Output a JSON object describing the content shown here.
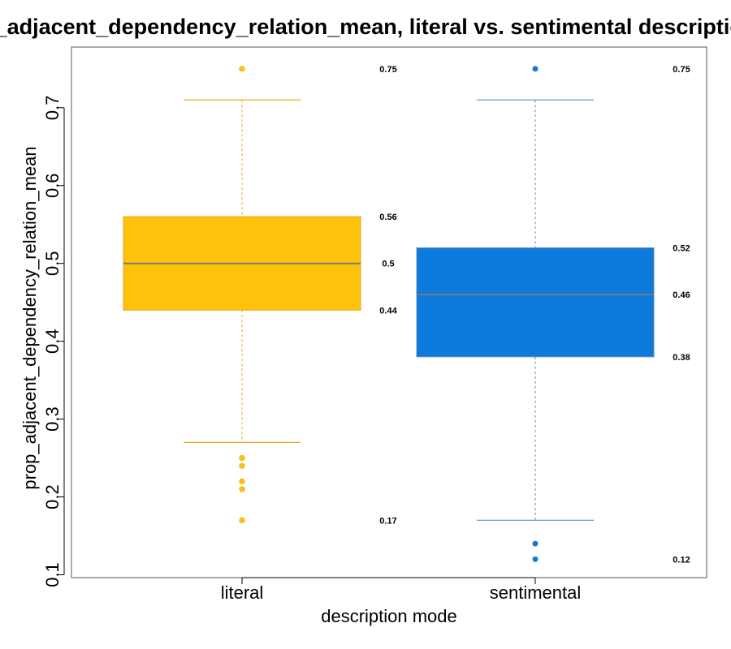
{
  "chart_data": {
    "type": "box",
    "title": "prop_adjacent_dependency_relation_mean, literal vs. sentimental descriptions",
    "xlabel": "description mode",
    "ylabel": "prop_adjacent_dependency_relation_mean",
    "ylim": [
      0.1,
      0.775
    ],
    "yticks": [
      0.1,
      0.2,
      0.3,
      0.4,
      0.5,
      0.6,
      0.7
    ],
    "ytick_labels": [
      "0.1",
      "0.2",
      "0.3",
      "0.4",
      "0.5",
      "0.6",
      "0.7"
    ],
    "grid": false,
    "categories": [
      "literal",
      "sentimental"
    ],
    "boxes": [
      {
        "category": "literal",
        "fill_color": "#FFC20A",
        "line_color": "#E6A817",
        "whisker_low": 0.27,
        "q1": 0.44,
        "median": 0.5,
        "q3": 0.56,
        "whisker_high": 0.71,
        "outliers": [
          0.75,
          0.25,
          0.24,
          0.22,
          0.21,
          0.17
        ],
        "annotations": [
          {
            "value": 0.75,
            "text": "0.75"
          },
          {
            "value": 0.56,
            "text": "0.56"
          },
          {
            "value": 0.5,
            "text": "0.5"
          },
          {
            "value": 0.44,
            "text": "0.44"
          },
          {
            "value": 0.17,
            "text": "0.17"
          }
        ]
      },
      {
        "category": "sentimental",
        "fill_color": "#0C7BDC",
        "line_color": "#5B8EC9",
        "whisker_low": 0.17,
        "q1": 0.38,
        "median": 0.46,
        "q3": 0.52,
        "whisker_high": 0.71,
        "outliers": [
          0.75,
          0.14,
          0.12
        ],
        "annotations": [
          {
            "value": 0.75,
            "text": "0.75"
          },
          {
            "value": 0.52,
            "text": "0.52"
          },
          {
            "value": 0.46,
            "text": "0.46"
          },
          {
            "value": 0.38,
            "text": "0.38"
          },
          {
            "value": 0.12,
            "text": "0.12"
          }
        ]
      }
    ]
  }
}
